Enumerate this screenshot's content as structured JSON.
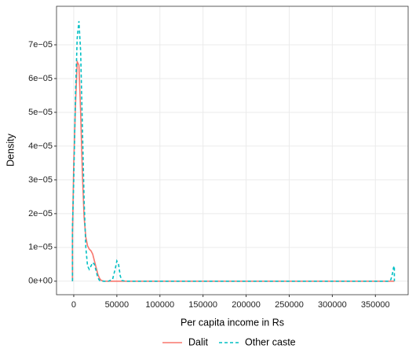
{
  "chart_data": {
    "type": "line",
    "title_x": "Per capita income in Rs",
    "title_y": "Density",
    "x": [
      -1500,
      -1500,
      0,
      2000,
      4000,
      6000,
      8000,
      10000,
      12000,
      14000,
      16000,
      18000,
      20000,
      22000,
      24000,
      26000,
      28000,
      30000,
      32000,
      35000,
      40000,
      45000,
      48000,
      50000,
      52000,
      54000,
      56000,
      60000,
      100000,
      200000,
      300000,
      366000,
      368000,
      370000,
      371000,
      372000,
      372000
    ],
    "series": [
      {
        "name": "Dalit",
        "color": "#F8766D",
        "linetype": "solid",
        "values": [
          0,
          1.4e-05,
          3.5e-05,
          5.2e-05,
          6.5e-05,
          6.4e-05,
          5e-05,
          3.2e-05,
          1.9e-05,
          1.3e-05,
          1.05e-05,
          9.5e-06,
          9e-06,
          8e-06,
          6e-06,
          4e-06,
          2e-06,
          8e-07,
          2e-07,
          0,
          0,
          0,
          0,
          0,
          0,
          0,
          0,
          0,
          0,
          0,
          0,
          0,
          0,
          0,
          0,
          0,
          0
        ]
      },
      {
        "name": "Other caste",
        "color": "#00BFC4",
        "linetype": "dashed",
        "values": [
          0,
          1.6e-05,
          3e-05,
          5.5e-05,
          7.2e-05,
          7.7e-05,
          6.8e-05,
          4.6e-05,
          2.4e-05,
          1e-05,
          4.5e-06,
          3.5e-06,
          4.5e-06,
          5.5e-06,
          5e-06,
          3e-06,
          1e-06,
          2e-07,
          0,
          0,
          0,
          5e-07,
          3.5e-06,
          6e-06,
          5e-06,
          1.5e-06,
          2e-07,
          0,
          0,
          0,
          0,
          0,
          5e-07,
          2.5e-06,
          4e-06,
          4.5e-06,
          0
        ]
      }
    ],
    "xlim": [
      -20000,
      388000
    ],
    "xticks": [
      0,
      50000,
      100000,
      150000,
      200000,
      250000,
      300000,
      350000
    ],
    "ylim": [
      -4e-06,
      8.14e-05
    ],
    "yticks": [
      {
        "value": 0,
        "label": "0e+00"
      },
      {
        "value": 1e-05,
        "label": "1e−05"
      },
      {
        "value": 2e-05,
        "label": "2e−05"
      },
      {
        "value": 3e-05,
        "label": "3e−05"
      },
      {
        "value": 4e-05,
        "label": "4e−05"
      },
      {
        "value": 5e-05,
        "label": "5e−05"
      },
      {
        "value": 6e-05,
        "label": "6e−05"
      },
      {
        "value": 7e-05,
        "label": "7e−05"
      }
    ],
    "grid": true,
    "legend": "bottom"
  }
}
